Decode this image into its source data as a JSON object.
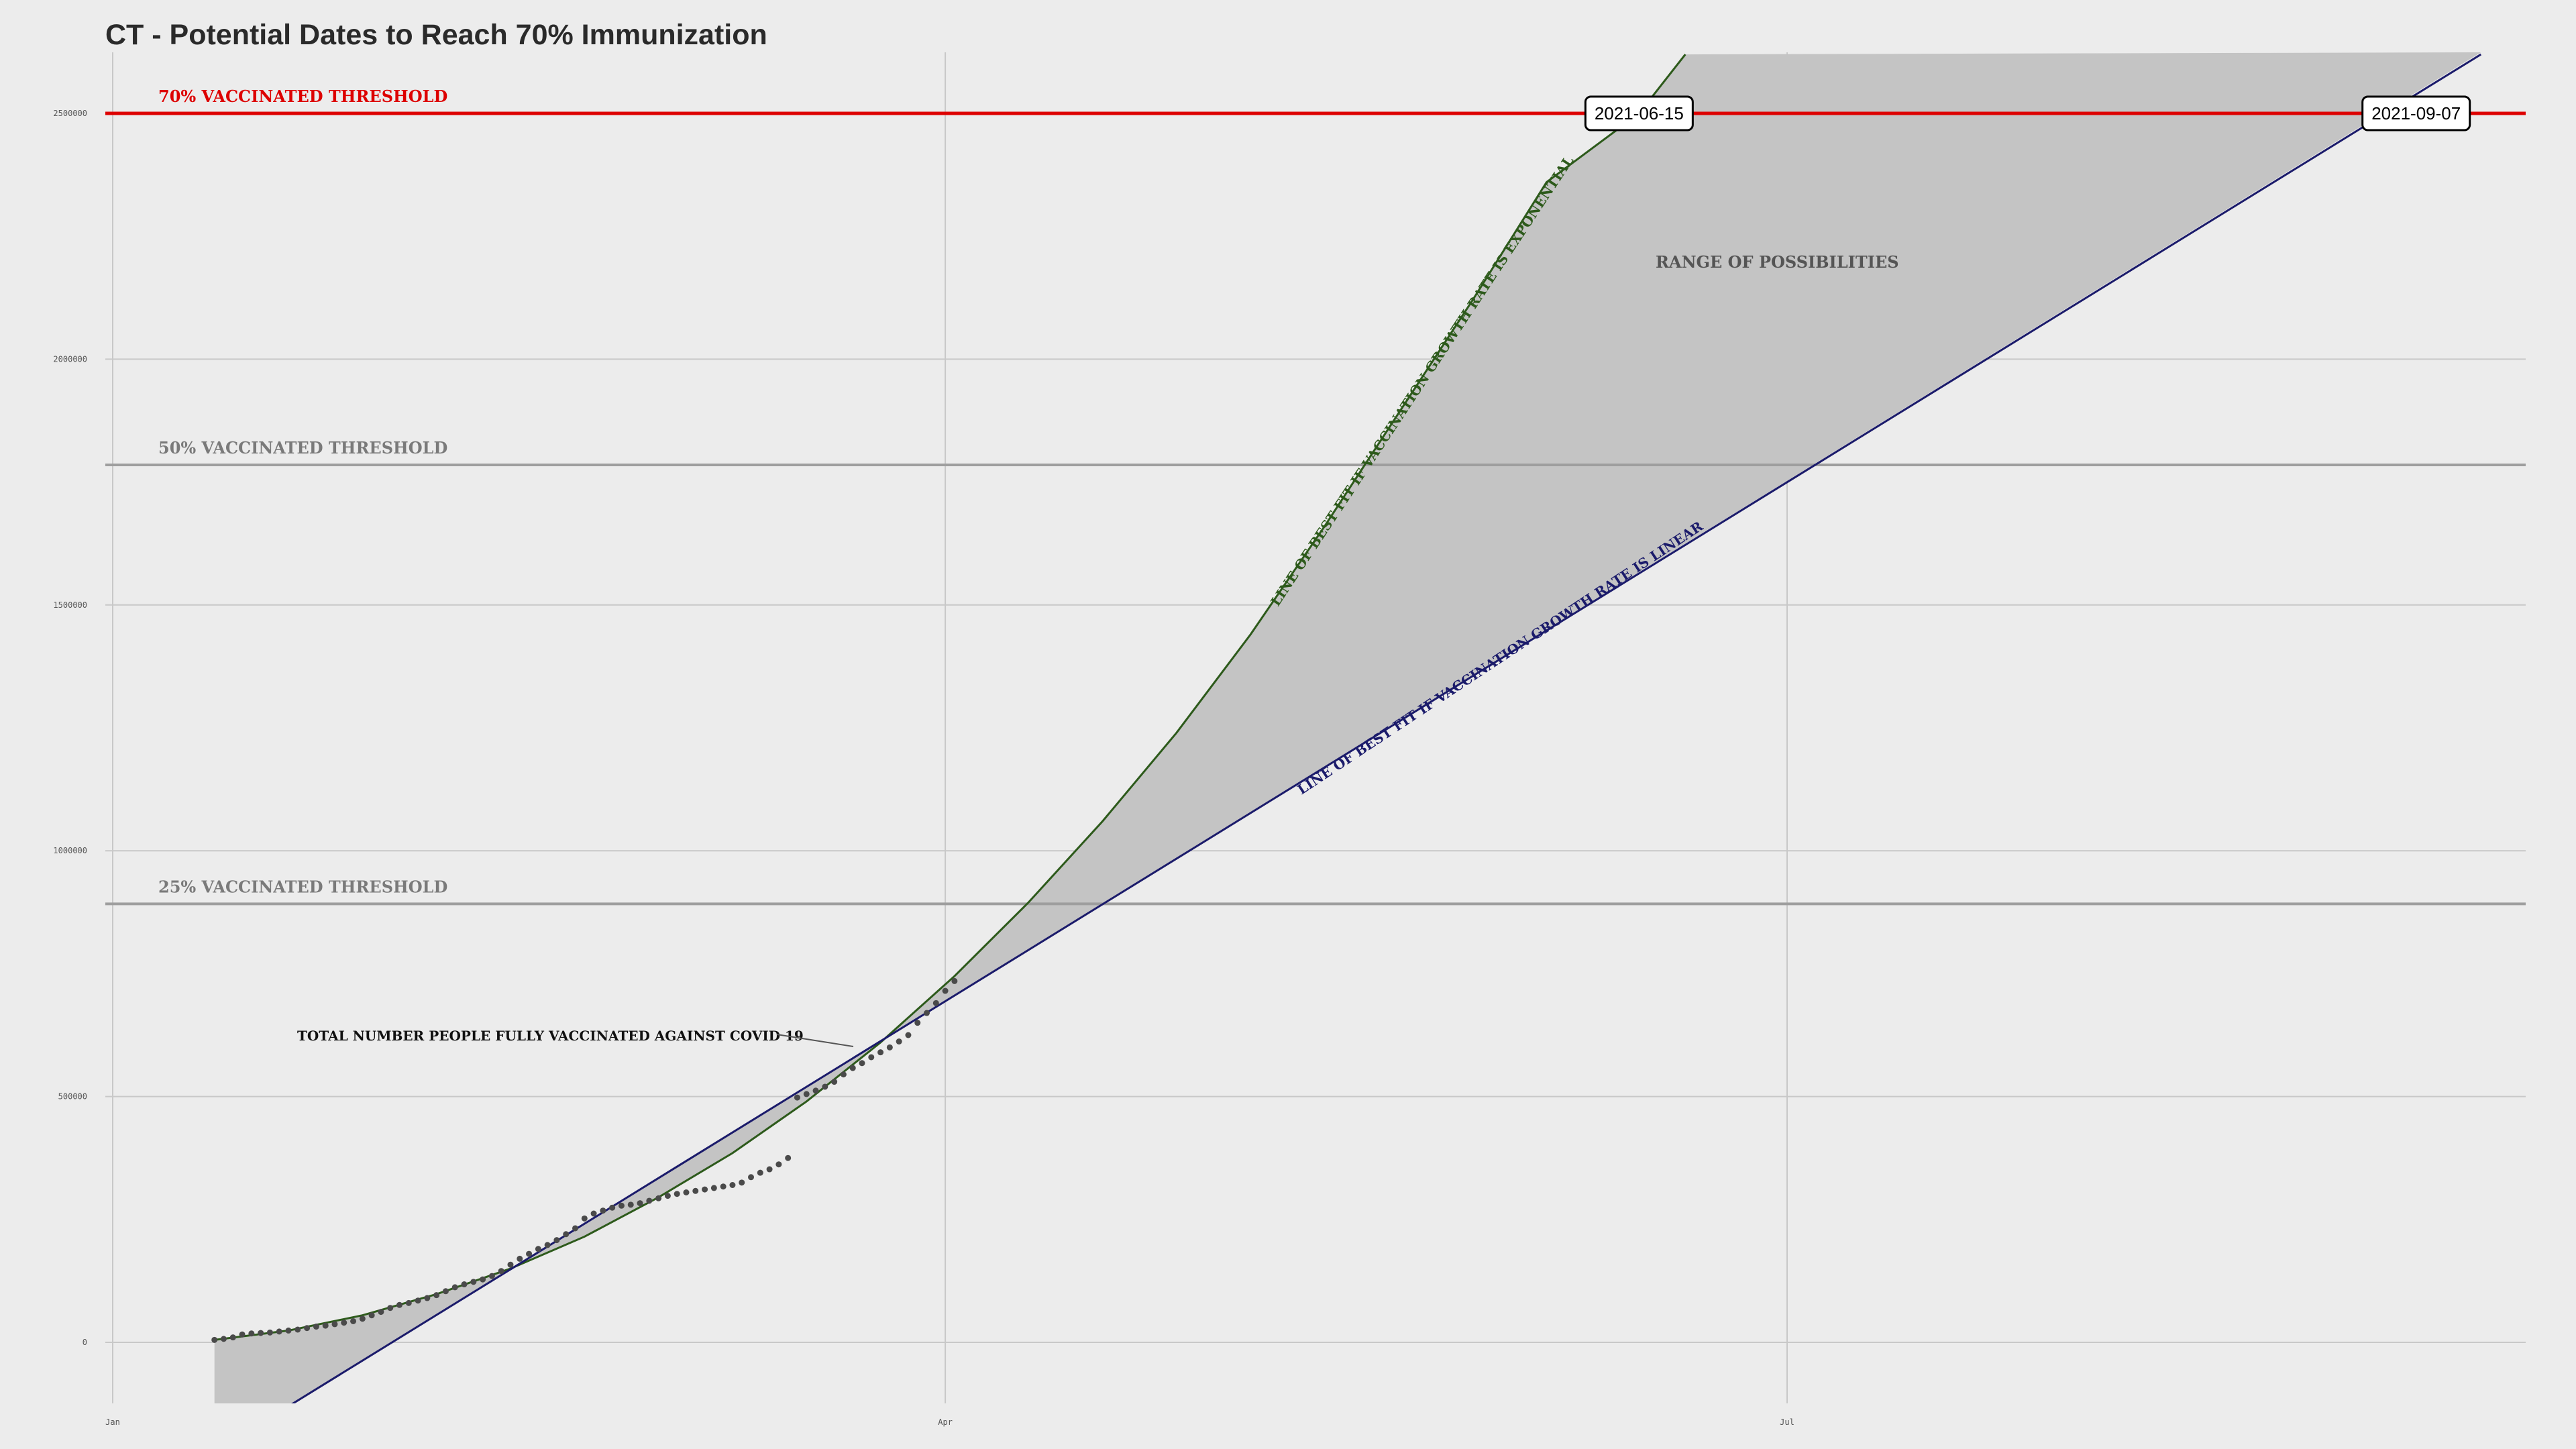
{
  "chart_data": {
    "type": "line",
    "title": "CT - Potential Dates to Reach 70% Immunization",
    "xlabel": "",
    "ylabel": "",
    "x_range": [
      "2021-01-01",
      "2021-10-21"
    ],
    "ylim": [
      -130000,
      2620000
    ],
    "x_ticks": [
      {
        "date": "2021-01-01",
        "label": "Jan"
      },
      {
        "date": "2021-04-01",
        "label": "Apr"
      },
      {
        "date": "2021-07-01",
        "label": "Jul"
      }
    ],
    "y_ticks": [
      {
        "value": 0,
        "label": "0"
      },
      {
        "value": 500000,
        "label": "500000"
      },
      {
        "value": 1000000,
        "label": "1000000"
      },
      {
        "value": 1500000,
        "label": "1500000"
      },
      {
        "value": 2000000,
        "label": "2000000"
      },
      {
        "value": 2500000,
        "label": "2500000"
      }
    ],
    "grid": true,
    "thresholds": [
      {
        "name": "70% VACCINATED THRESHOLD",
        "value": 2500000,
        "color": "#dd0000"
      },
      {
        "name": "50% VACCINATED THRESHOLD",
        "value": 1785000,
        "color": "#9e9e9e"
      },
      {
        "name": "25% VACCINATED THRESHOLD",
        "value": 892000,
        "color": "#9e9e9e"
      }
    ],
    "date_labels": [
      "2021-06-15",
      "2021-09-07"
    ],
    "range_label": "RANGE OF POSSIBILITIES",
    "fit_exponential": {
      "name": "LINE OF BEST FIT IF  VACCINATION GROWTH RATE IS EXPONENTIAL",
      "color": "#2d5a1b",
      "points": [
        {
          "date": "2021-01-12",
          "value": 5000
        },
        {
          "date": "2021-01-20",
          "value": 24000
        },
        {
          "date": "2021-01-28",
          "value": 55000
        },
        {
          "date": "2021-02-05",
          "value": 98000
        },
        {
          "date": "2021-02-13",
          "value": 150000
        },
        {
          "date": "2021-02-21",
          "value": 215000
        },
        {
          "date": "2021-03-01",
          "value": 295000
        },
        {
          "date": "2021-03-09",
          "value": 385000
        },
        {
          "date": "2021-03-17",
          "value": 490000
        },
        {
          "date": "2021-03-25",
          "value": 610000
        },
        {
          "date": "2021-04-02",
          "value": 745000
        },
        {
          "date": "2021-04-10",
          "value": 895000
        },
        {
          "date": "2021-04-18",
          "value": 1060000
        },
        {
          "date": "2021-04-26",
          "value": 1240000
        },
        {
          "date": "2021-05-04",
          "value": 1440000
        },
        {
          "date": "2021-05-12",
          "value": 1660000
        },
        {
          "date": "2021-05-20",
          "value": 1890000
        },
        {
          "date": "2021-05-28",
          "value": 2120000
        },
        {
          "date": "2021-06-05",
          "value": 2360000
        },
        {
          "date": "2021-06-15",
          "value": 2500000
        },
        {
          "date": "2021-06-20",
          "value": 2620000
        }
      ]
    },
    "fit_linear": {
      "name": "LINE OF BEST FIT IF  VACCINATION GROWTH RATE IS LINEAR",
      "color": "#1b1b6b",
      "points": [
        {
          "date": "2021-01-20",
          "value": -130000
        },
        {
          "date": "2021-09-07",
          "value": 2500000
        },
        {
          "date": "2021-09-14",
          "value": 2620000
        }
      ]
    },
    "observed": {
      "name": "TOTAL NUMBER PEOPLE FULLY VACCINATED AGAINST COVID 19",
      "color": "#4a4a4a",
      "points": [
        {
          "date": "2021-01-12",
          "value": 5000
        },
        {
          "date": "2021-01-13",
          "value": 7000
        },
        {
          "date": "2021-01-14",
          "value": 10000
        },
        {
          "date": "2021-01-15",
          "value": 16000
        },
        {
          "date": "2021-01-16",
          "value": 18000
        },
        {
          "date": "2021-01-17",
          "value": 19000
        },
        {
          "date": "2021-01-18",
          "value": 20000
        },
        {
          "date": "2021-01-19",
          "value": 22000
        },
        {
          "date": "2021-01-20",
          "value": 24000
        },
        {
          "date": "2021-01-21",
          "value": 26000
        },
        {
          "date": "2021-01-22",
          "value": 29000
        },
        {
          "date": "2021-01-23",
          "value": 32000
        },
        {
          "date": "2021-01-24",
          "value": 34000
        },
        {
          "date": "2021-01-25",
          "value": 37000
        },
        {
          "date": "2021-01-26",
          "value": 40000
        },
        {
          "date": "2021-01-27",
          "value": 43000
        },
        {
          "date": "2021-01-28",
          "value": 48000
        },
        {
          "date": "2021-01-29",
          "value": 55000
        },
        {
          "date": "2021-01-30",
          "value": 62000
        },
        {
          "date": "2021-01-31",
          "value": 70000
        },
        {
          "date": "2021-02-01",
          "value": 76000
        },
        {
          "date": "2021-02-02",
          "value": 80000
        },
        {
          "date": "2021-02-03",
          "value": 85000
        },
        {
          "date": "2021-02-04",
          "value": 90000
        },
        {
          "date": "2021-02-05",
          "value": 96000
        },
        {
          "date": "2021-02-06",
          "value": 104000
        },
        {
          "date": "2021-02-07",
          "value": 112000
        },
        {
          "date": "2021-02-08",
          "value": 118000
        },
        {
          "date": "2021-02-09",
          "value": 123000
        },
        {
          "date": "2021-02-10",
          "value": 128000
        },
        {
          "date": "2021-02-11",
          "value": 135000
        },
        {
          "date": "2021-02-12",
          "value": 145000
        },
        {
          "date": "2021-02-13",
          "value": 158000
        },
        {
          "date": "2021-02-14",
          "value": 170000
        },
        {
          "date": "2021-02-15",
          "value": 180000
        },
        {
          "date": "2021-02-16",
          "value": 190000
        },
        {
          "date": "2021-02-17",
          "value": 198000
        },
        {
          "date": "2021-02-18",
          "value": 208000
        },
        {
          "date": "2021-02-19",
          "value": 220000
        },
        {
          "date": "2021-02-20",
          "value": 232000
        },
        {
          "date": "2021-02-21",
          "value": 252000
        },
        {
          "date": "2021-02-22",
          "value": 262000
        },
        {
          "date": "2021-02-23",
          "value": 268000
        },
        {
          "date": "2021-02-24",
          "value": 274000
        },
        {
          "date": "2021-02-25",
          "value": 278000
        },
        {
          "date": "2021-02-26",
          "value": 280000
        },
        {
          "date": "2021-02-27",
          "value": 283000
        },
        {
          "date": "2021-02-28",
          "value": 288000
        },
        {
          "date": "2021-03-01",
          "value": 293000
        },
        {
          "date": "2021-03-02",
          "value": 298000
        },
        {
          "date": "2021-03-03",
          "value": 302000
        },
        {
          "date": "2021-03-04",
          "value": 305000
        },
        {
          "date": "2021-03-05",
          "value": 308000
        },
        {
          "date": "2021-03-06",
          "value": 311000
        },
        {
          "date": "2021-03-07",
          "value": 314000
        },
        {
          "date": "2021-03-08",
          "value": 317000
        },
        {
          "date": "2021-03-09",
          "value": 320000
        },
        {
          "date": "2021-03-10",
          "value": 325000
        },
        {
          "date": "2021-03-11",
          "value": 336000
        },
        {
          "date": "2021-03-12",
          "value": 345000
        },
        {
          "date": "2021-03-13",
          "value": 352000
        },
        {
          "date": "2021-03-14",
          "value": 362000
        },
        {
          "date": "2021-03-15",
          "value": 375000
        },
        {
          "date": "2021-03-16",
          "value": 498000
        },
        {
          "date": "2021-03-17",
          "value": 505000
        },
        {
          "date": "2021-03-18",
          "value": 512000
        },
        {
          "date": "2021-03-19",
          "value": 520000
        },
        {
          "date": "2021-03-20",
          "value": 530000
        },
        {
          "date": "2021-03-21",
          "value": 545000
        },
        {
          "date": "2021-03-22",
          "value": 558000
        },
        {
          "date": "2021-03-23",
          "value": 568000
        },
        {
          "date": "2021-03-24",
          "value": 580000
        },
        {
          "date": "2021-03-25",
          "value": 590000
        },
        {
          "date": "2021-03-26",
          "value": 600000
        },
        {
          "date": "2021-03-27",
          "value": 612000
        },
        {
          "date": "2021-03-28",
          "value": 625000
        },
        {
          "date": "2021-03-29",
          "value": 650000
        },
        {
          "date": "2021-03-30",
          "value": 670000
        },
        {
          "date": "2021-03-31",
          "value": 690000
        },
        {
          "date": "2021-04-01",
          "value": 715000
        },
        {
          "date": "2021-04-02",
          "value": 735000
        }
      ]
    }
  }
}
